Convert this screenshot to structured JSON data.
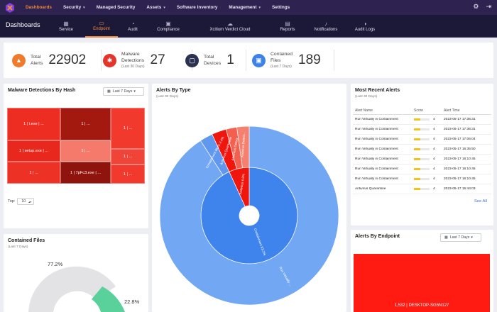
{
  "topnav": {
    "items": [
      {
        "label": "Dashboards",
        "caret": false
      },
      {
        "label": "Security",
        "caret": true
      },
      {
        "label": "Managed Security",
        "caret": false
      },
      {
        "label": "Assets",
        "caret": true
      },
      {
        "label": "Software Inventory",
        "caret": false
      },
      {
        "label": "Management",
        "caret": true
      },
      {
        "label": "Settings",
        "caret": false
      }
    ],
    "active_color": "#f08a3a"
  },
  "subnav": {
    "title": "Dashboards",
    "tabs": [
      {
        "label": "Service",
        "icon": "service-icon"
      },
      {
        "label": "Endpoint",
        "icon": "endpoint-icon"
      },
      {
        "label": "Audit",
        "icon": "audit-icon"
      },
      {
        "label": "Compliance",
        "icon": "compliance-icon"
      },
      {
        "label": "Xcitium Verdict Cloud",
        "icon": "cloud-icon"
      },
      {
        "label": "Reports",
        "icon": "reports-icon"
      },
      {
        "label": "Notifications",
        "icon": "bell-icon"
      },
      {
        "label": "Audit Logs",
        "icon": "audit-logs-icon"
      }
    ]
  },
  "stats": [
    {
      "line1": "Total",
      "line2": "Alerts",
      "sub": "",
      "value": "22902",
      "icon": "flame-icon",
      "color": "#f07b2a"
    },
    {
      "line1": "Malware",
      "line2": "Detections",
      "sub": "(Last 30 Days)",
      "value": "27",
      "icon": "bug-icon",
      "color": "#e5352b"
    },
    {
      "line1": "Total",
      "line2": "Devices",
      "sub": "",
      "value": "1",
      "icon": "monitor-icon",
      "color": "#2b3150"
    },
    {
      "line1": "Contained",
      "line2": "Files",
      "sub": "(Last 7 Days)",
      "value": "189",
      "icon": "file-icon",
      "color": "#3d82e6"
    }
  ],
  "malware": {
    "title": "Malware Detections By Hash",
    "range": "Last 7 Days",
    "top_label": "Top:",
    "top_value": "10",
    "cells": [
      {
        "label": "1 | i.exe | ...",
        "color": "#ee2d22"
      },
      {
        "label": "1 | ...",
        "color": "#a3180f"
      },
      {
        "label": "1 | ...",
        "color": "#f13a2d"
      },
      {
        "label": "1 | setup.exe | ...",
        "color": "#e8281c"
      },
      {
        "label": "1 | ...",
        "color": "#f67a6c"
      },
      {
        "label": "1 | ...",
        "color": "#f04438"
      },
      {
        "label": "1 | ...",
        "color": "#ee3125"
      },
      {
        "label": "1 | 7pFc3.exe | ...",
        "color": "#8f140d"
      },
      {
        "label": "1 | ...",
        "color": "#f13a2d"
      }
    ]
  },
  "alerts_by_type": {
    "title": "Alerts By Type",
    "sub": "(Last 30 Days)",
    "inner_labels": [
      "Containment 93.2%",
      "Antivirus 6.8%"
    ],
    "outer_labels": [
      "Run Virtually ...",
      "Containment Block 2.4%",
      "Antivirus Quarantine",
      "Antivirus Detect...",
      "Antivirus Detect..."
    ]
  },
  "recent_alerts": {
    "title": "Most Recent Alerts",
    "sub": "(Last 30 Days)",
    "columns": [
      "Alert Name",
      "Score",
      "Alert Time"
    ],
    "rows": [
      {
        "name": "Run Virtually in Containment",
        "score": 4,
        "time": "2023-05-17 17:36:31"
      },
      {
        "name": "Run Virtually in Containment",
        "score": 4,
        "time": "2023-05-17 17:36:31"
      },
      {
        "name": "Run Virtually in Containment",
        "score": 4,
        "time": "2023-05-17 17:06:04"
      },
      {
        "name": "Run Virtually in Containment",
        "score": 4,
        "time": "2023-05-17 16:35:50"
      },
      {
        "name": "Run Virtually in Containment",
        "score": 4,
        "time": "2023-05-17 16:10:45"
      },
      {
        "name": "Run Virtually in Containment",
        "score": 4,
        "time": "2023-05-17 16:10:45"
      },
      {
        "name": "Run Virtually in Containment",
        "score": 4,
        "time": "2023-05-17 16:10:45"
      },
      {
        "name": "Antivirus Quarantine",
        "score": 4,
        "time": "2023-05-17 15:44:03"
      }
    ],
    "score_fraction": 0.4,
    "see_all": "See All"
  },
  "contained_files": {
    "title": "Contained Files",
    "sub": "(Last 7 Days)",
    "big_label": "77.2%",
    "small_label": "22.8%"
  },
  "alerts_by_endpoint": {
    "title": "Alerts By Endpoint",
    "range": "Last 7 Days",
    "bar_label": "1,532 | DESKTOP-SG5N127"
  }
}
